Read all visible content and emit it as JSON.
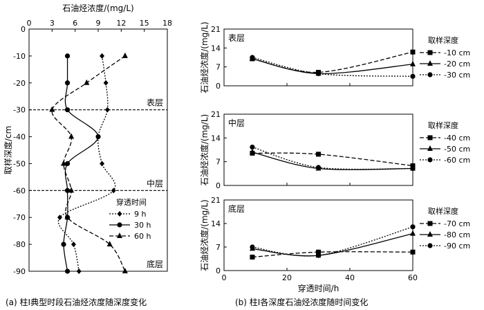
{
  "chart_data": [
    {
      "type": "line",
      "caption": "(a) 柱Ⅰ典型时段石油烃浓度随深度变化",
      "xlabel": "石油烃浓度/(mg/L)",
      "ylabel": "取样深度/cm",
      "xlim": [
        0,
        18
      ],
      "ylim": [
        -90,
        0
      ],
      "xticks": [
        "0",
        "3",
        "6",
        "9",
        "12",
        "15",
        "18"
      ],
      "yticks": [
        "0",
        "-10",
        "-20",
        "-30",
        "-40",
        "-50",
        "-60",
        "-70",
        "-80",
        "-90"
      ],
      "x_axis_position": "top",
      "layer_lines": [
        -30,
        -60
      ],
      "annotations": [
        "表层",
        "中层",
        "底层"
      ],
      "legend_title": "穿透时间",
      "legend_position": "bottom-right",
      "y": [
        -10,
        -20,
        -30,
        -40,
        -50,
        -60,
        -70,
        -80,
        -90
      ],
      "series": [
        {
          "name": "9 h",
          "style": "dotted",
          "marker": "diamond",
          "x": [
            9.5,
            10.0,
            10.2,
            9.0,
            9.5,
            11.0,
            4.0,
            5.8,
            6.5
          ]
        },
        {
          "name": "30 h",
          "style": "solid",
          "marker": "circle",
          "x": [
            5.0,
            5.0,
            5.0,
            9.0,
            5.0,
            5.0,
            5.0,
            4.5,
            5.0
          ]
        },
        {
          "name": "60 h",
          "style": "dashed",
          "marker": "triangle",
          "x": [
            12.5,
            7.5,
            3.0,
            5.5,
            4.5,
            5.5,
            5.0,
            10.5,
            12.5
          ]
        }
      ]
    },
    {
      "type": "line",
      "caption": "(b) 柱Ⅰ各深度石油烃浓度随时间变化",
      "xlabel": "穿透时间/h",
      "ylabel": "石油烃浓度/(mg/L)",
      "xlim": [
        0,
        60
      ],
      "xticks": [
        "0",
        "20",
        "40",
        "60"
      ],
      "panels": [
        {
          "title": "表层",
          "ylim": [
            0,
            21
          ],
          "yticks": [
            "0",
            "7",
            "14",
            "21"
          ],
          "legend_title": "取样深度",
          "x": [
            9,
            30,
            60
          ],
          "series": [
            {
              "name": "-10 cm",
              "style": "dashed",
              "marker": "square",
              "values": [
                10.0,
                5.0,
                12.5
              ]
            },
            {
              "name": "-20 cm",
              "style": "solid",
              "marker": "triangle",
              "values": [
                10.0,
                4.5,
                8.0
              ]
            },
            {
              "name": "-30 cm",
              "style": "dotted",
              "marker": "circle",
              "values": [
                10.5,
                4.5,
                3.5
              ]
            }
          ]
        },
        {
          "title": "中层",
          "ylim": [
            0,
            21
          ],
          "yticks": [
            "0",
            "7",
            "14",
            "21"
          ],
          "legend_title": "取样深度",
          "x": [
            9,
            30,
            60
          ],
          "series": [
            {
              "name": "-40 cm",
              "style": "dashed",
              "marker": "square",
              "values": [
                9.5,
                9.2,
                5.8
              ]
            },
            {
              "name": "-50 cm",
              "style": "solid",
              "marker": "triangle",
              "values": [
                9.8,
                5.0,
                5.0
              ]
            },
            {
              "name": "-60 cm",
              "style": "dotted",
              "marker": "circle",
              "values": [
                11.3,
                5.3,
                5.0
              ]
            }
          ]
        },
        {
          "title": "底层",
          "ylim": [
            0,
            21
          ],
          "yticks": [
            "0",
            "7",
            "14",
            "21"
          ],
          "legend_title": "取样深度",
          "x": [
            9,
            30,
            60
          ],
          "series": [
            {
              "name": "-70 cm",
              "style": "dashed",
              "marker": "square",
              "values": [
                4.0,
                5.5,
                5.5
              ]
            },
            {
              "name": "-80 cm",
              "style": "solid",
              "marker": "triangle",
              "values": [
                6.5,
                4.5,
                11.0
              ]
            },
            {
              "name": "-90 cm",
              "style": "dotted",
              "marker": "circle",
              "values": [
                7.0,
                4.5,
                13.0
              ]
            }
          ]
        }
      ]
    }
  ]
}
